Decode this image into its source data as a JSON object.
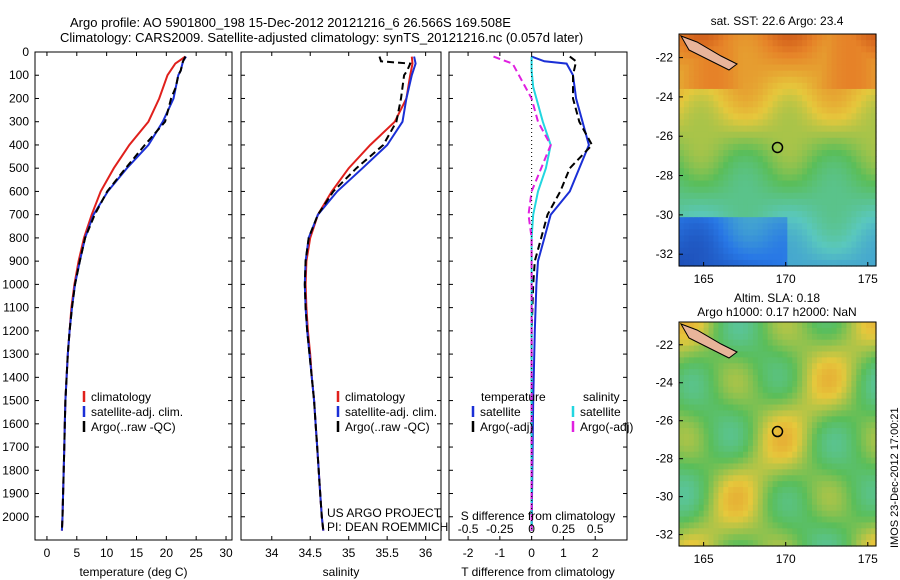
{
  "header": {
    "line1": "Argo profile: AO 5901800_198 15-Dec-2012 20121216_6 26.566S 169.508E",
    "line2": "Climatology: CARS2009. Satellite-adjusted climatology: synTS_20121216.nc (0.057d later)"
  },
  "side_stamp": "IMOS 23-Dec-2012 17:00:21",
  "colors": {
    "climatology": "#e0201c",
    "satellite": "#1a2fd6",
    "argo": "#000000",
    "salinity_sat": "#22d6e0",
    "salinity_argo": "#e020e0"
  },
  "chart_data": [
    {
      "type": "line",
      "xlabel": "temperature (deg C)",
      "ylabel": "",
      "xlim": [
        -2,
        31
      ],
      "ylim": [
        2100,
        0
      ],
      "xticks": [
        0,
        5,
        10,
        15,
        20,
        25,
        30
      ],
      "yticks": [
        0,
        100,
        200,
        300,
        400,
        500,
        600,
        700,
        800,
        900,
        1000,
        1100,
        1200,
        1300,
        1400,
        1500,
        1600,
        1700,
        1800,
        1900,
        2000
      ],
      "legend": {
        "position": "lower-center",
        "entries": [
          "climatology",
          "satellite-adj. clim.",
          "Argo(..raw -QC)"
        ]
      },
      "series": [
        {
          "name": "climatology",
          "style": "solid",
          "color": "#e0201c",
          "points": [
            [
              23.2,
              20
            ],
            [
              22.6,
              30
            ],
            [
              21.5,
              50
            ],
            [
              20.2,
              100
            ],
            [
              18.8,
              200
            ],
            [
              17,
              300
            ],
            [
              13.8,
              400
            ],
            [
              11.2,
              500
            ],
            [
              9,
              600
            ],
            [
              7.5,
              700
            ],
            [
              6.2,
              800
            ],
            [
              5.3,
              900
            ],
            [
              4.6,
              1000
            ],
            [
              4.1,
              1100
            ],
            [
              3.8,
              1200
            ],
            [
              3.5,
              1300
            ],
            [
              3.3,
              1400
            ],
            [
              3.1,
              1500
            ],
            [
              3,
              1600
            ],
            [
              2.9,
              1700
            ],
            [
              2.8,
              1800
            ],
            [
              2.7,
              1900
            ],
            [
              2.6,
              2000
            ],
            [
              2.5,
              2060
            ]
          ]
        },
        {
          "name": "satellite-adj. clim.",
          "style": "solid",
          "color": "#1a2fd6",
          "points": [
            [
              23.3,
              20
            ],
            [
              22.8,
              40
            ],
            [
              22.4,
              80
            ],
            [
              22,
              100
            ],
            [
              21.2,
              200
            ],
            [
              19.4,
              300
            ],
            [
              17,
              400
            ],
            [
              13.4,
              500
            ],
            [
              10.2,
              600
            ],
            [
              7.8,
              700
            ],
            [
              6.4,
              800
            ],
            [
              5.5,
              900
            ],
            [
              4.7,
              1000
            ],
            [
              4.2,
              1100
            ],
            [
              3.8,
              1200
            ],
            [
              3.5,
              1300
            ],
            [
              3.3,
              1400
            ],
            [
              3.1,
              1500
            ],
            [
              3,
              1600
            ],
            [
              2.9,
              1700
            ],
            [
              2.8,
              1800
            ],
            [
              2.7,
              1900
            ],
            [
              2.6,
              2000
            ],
            [
              2.5,
              2060
            ]
          ]
        },
        {
          "name": "Argo(..raw -QC)",
          "style": "dashed",
          "color": "#000000",
          "points": [
            [
              23.2,
              20
            ],
            [
              22.8,
              40
            ],
            [
              22.4,
              80
            ],
            [
              22,
              100
            ],
            [
              21.6,
              150
            ],
            [
              20.8,
              200
            ],
            [
              19.8,
              300
            ],
            [
              16.4,
              400
            ],
            [
              13.2,
              500
            ],
            [
              10.1,
              600
            ],
            [
              8,
              700
            ],
            [
              6.4,
              800
            ],
            [
              5.5,
              900
            ],
            [
              4.7,
              1000
            ],
            [
              4.2,
              1100
            ],
            [
              3.8,
              1200
            ],
            [
              3.5,
              1300
            ],
            [
              3.3,
              1400
            ],
            [
              3.1,
              1500
            ],
            [
              3,
              1600
            ],
            [
              2.9,
              1700
            ],
            [
              2.8,
              1800
            ],
            [
              2.7,
              1900
            ],
            [
              2.6,
              2000
            ],
            [
              2.5,
              2060
            ]
          ]
        }
      ]
    },
    {
      "type": "line",
      "xlabel": "salinity",
      "ylabel": "",
      "xlim": [
        33.6,
        36.2
      ],
      "ylim": [
        2100,
        0
      ],
      "xticks": [
        34,
        34.5,
        35,
        35.5,
        36
      ],
      "legend": {
        "position": "lower-center",
        "entries": [
          "climatology",
          "satellite-adj. clim.",
          "Argo(..raw -QC)"
        ]
      },
      "annotations": [
        "US ARGO PROJECT",
        "PI: DEAN ROEMMICH"
      ],
      "series": [
        {
          "name": "climatology",
          "style": "solid",
          "color": "#e0201c",
          "points": [
            [
              35.82,
              20
            ],
            [
              35.83,
              50
            ],
            [
              35.8,
              100
            ],
            [
              35.75,
              200
            ],
            [
              35.6,
              300
            ],
            [
              35.28,
              400
            ],
            [
              35,
              500
            ],
            [
              34.78,
              600
            ],
            [
              34.6,
              700
            ],
            [
              34.5,
              800
            ],
            [
              34.45,
              900
            ],
            [
              34.44,
              1000
            ],
            [
              34.45,
              1100
            ],
            [
              34.47,
              1200
            ],
            [
              34.5,
              1300
            ],
            [
              34.52,
              1400
            ],
            [
              34.55,
              1500
            ],
            [
              34.57,
              1600
            ],
            [
              34.59,
              1700
            ],
            [
              34.61,
              1800
            ],
            [
              34.63,
              1900
            ],
            [
              34.65,
              2000
            ],
            [
              34.67,
              2060
            ]
          ]
        },
        {
          "name": "satellite-adj. clim.",
          "style": "solid",
          "color": "#1a2fd6",
          "points": [
            [
              35.85,
              20
            ],
            [
              35.87,
              50
            ],
            [
              35.82,
              100
            ],
            [
              35.75,
              200
            ],
            [
              35.7,
              300
            ],
            [
              35.5,
              400
            ],
            [
              35.18,
              500
            ],
            [
              34.85,
              600
            ],
            [
              34.6,
              700
            ],
            [
              34.48,
              800
            ],
            [
              34.44,
              900
            ],
            [
              34.43,
              1000
            ],
            [
              34.44,
              1100
            ],
            [
              34.46,
              1200
            ],
            [
              34.49,
              1300
            ],
            [
              34.52,
              1400
            ],
            [
              34.55,
              1500
            ],
            [
              34.57,
              1600
            ],
            [
              34.59,
              1700
            ],
            [
              34.61,
              1800
            ],
            [
              34.63,
              1900
            ],
            [
              34.65,
              2000
            ],
            [
              34.67,
              2060
            ]
          ]
        },
        {
          "name": "Argo(..raw -QC)",
          "style": "dashed",
          "color": "#000000",
          "points": [
            [
              35.4,
              20
            ],
            [
              35.42,
              40
            ],
            [
              35.8,
              50
            ],
            [
              35.76,
              80
            ],
            [
              35.72,
              100
            ],
            [
              35.68,
              200
            ],
            [
              35.62,
              300
            ],
            [
              35.45,
              400
            ],
            [
              35.1,
              500
            ],
            [
              34.8,
              600
            ],
            [
              34.6,
              700
            ],
            [
              34.48,
              800
            ],
            [
              34.44,
              900
            ],
            [
              34.43,
              1000
            ],
            [
              34.44,
              1100
            ],
            [
              34.46,
              1200
            ],
            [
              34.49,
              1300
            ],
            [
              34.52,
              1400
            ],
            [
              34.55,
              1500
            ],
            [
              34.57,
              1600
            ],
            [
              34.59,
              1700
            ],
            [
              34.61,
              1800
            ],
            [
              34.63,
              1900
            ],
            [
              34.65,
              2000
            ],
            [
              34.67,
              2060
            ]
          ]
        }
      ]
    },
    {
      "type": "line",
      "xlabel": "T difference from climatology",
      "xlabel2": "S difference from climatology",
      "xlim": [
        -2.6,
        3.0
      ],
      "ylim": [
        2100,
        0
      ],
      "xticks": [
        -2,
        -1,
        0,
        1,
        2
      ],
      "xticks_top": [
        -0.5,
        -0.25,
        0,
        0.25,
        0.5
      ],
      "legend_temperature": {
        "title": "temperature",
        "entries": [
          "satellite",
          "Argo(-adj)"
        ]
      },
      "legend_salinity": {
        "title": "salinity",
        "entries": [
          "satellite",
          "Argo(-adj)"
        ]
      },
      "series": [
        {
          "name": "temperature satellite",
          "style": "solid",
          "color": "#1a2fd6",
          "points": [
            [
              0,
              20
            ],
            [
              0.4,
              40
            ],
            [
              1.1,
              50
            ],
            [
              1.3,
              100
            ],
            [
              1.4,
              200
            ],
            [
              1.6,
              300
            ],
            [
              1.8,
              400
            ],
            [
              1.5,
              500
            ],
            [
              1.2,
              600
            ],
            [
              0.6,
              700
            ],
            [
              0.4,
              800
            ],
            [
              0.2,
              900
            ],
            [
              0.15,
              1000
            ],
            [
              0.1,
              1200
            ],
            [
              0.05,
              1500
            ],
            [
              0,
              2060
            ]
          ]
        },
        {
          "name": "temperature Argo(-adj)",
          "style": "dashed",
          "color": "#000000",
          "points": [
            [
              1.2,
              20
            ],
            [
              1.4,
              40
            ],
            [
              1.3,
              100
            ],
            [
              1.3,
              200
            ],
            [
              1.5,
              300
            ],
            [
              1.9,
              400
            ],
            [
              1.2,
              500
            ],
            [
              0.9,
              600
            ],
            [
              0.5,
              700
            ],
            [
              0.3,
              800
            ],
            [
              0.1,
              900
            ],
            [
              0.05,
              1000
            ],
            [
              0,
              1200
            ],
            [
              0,
              1500
            ],
            [
              0,
              2060
            ]
          ]
        },
        {
          "name": "salinity satellite",
          "style": "solid",
          "color": "#22d6e0",
          "points": [
            [
              0,
              20
            ],
            [
              0,
              80
            ],
            [
              0.05,
              150
            ],
            [
              0.15,
              200
            ],
            [
              0.35,
              300
            ],
            [
              0.6,
              400
            ],
            [
              0.45,
              500
            ],
            [
              0.2,
              600
            ],
            [
              0.05,
              700
            ],
            [
              0,
              800
            ],
            [
              0,
              1000
            ],
            [
              0,
              2060
            ]
          ]
        },
        {
          "name": "salinity Argo(-adj)",
          "style": "dashed",
          "color": "#e020e0",
          "points": [
            [
              -1.2,
              20
            ],
            [
              -0.6,
              50
            ],
            [
              -0.4,
              100
            ],
            [
              0,
              200
            ],
            [
              0.2,
              300
            ],
            [
              0.6,
              400
            ],
            [
              0.3,
              500
            ],
            [
              0,
              600
            ],
            [
              -0.1,
              700
            ],
            [
              0,
              800
            ],
            [
              0,
              1000
            ],
            [
              0,
              2060
            ]
          ]
        }
      ]
    },
    {
      "type": "heatmap",
      "title": "sat. SST: 22.6  Argo: 23.4",
      "xlim": [
        163.5,
        175.5
      ],
      "ylim": [
        -32.6,
        -20.8
      ],
      "xticks": [
        165,
        170,
        175
      ],
      "yticks": [
        -22,
        -24,
        -26,
        -28,
        -30,
        -32
      ],
      "marker": {
        "x": 169.5,
        "y": -26.57
      }
    },
    {
      "type": "heatmap",
      "title": "Altim. SLA: 0.18",
      "subtitle": "Argo h1000: 0.17 h2000: NaN",
      "xlim": [
        163.5,
        175.5
      ],
      "ylim": [
        -32.6,
        -20.8
      ],
      "xticks": [
        165,
        170,
        175
      ],
      "yticks": [
        -22,
        -24,
        -26,
        -28,
        -30,
        -32
      ],
      "marker": {
        "x": 169.5,
        "y": -26.57
      }
    }
  ]
}
